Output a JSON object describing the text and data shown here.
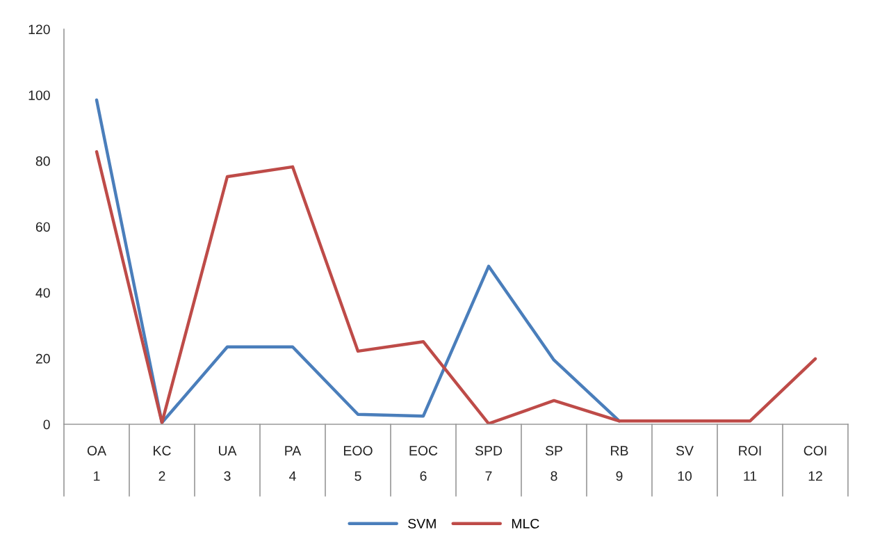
{
  "chart_data": {
    "type": "line",
    "categories": [
      "OA\n1",
      "KC\n2",
      "UA\n3",
      "PA\n4",
      "EOO\n5",
      "EOC\n6",
      "SPD\n7",
      "SP\n8",
      "RB\n9",
      "SV\n10",
      "ROI\n11",
      "COI\n12"
    ],
    "series": [
      {
        "name": "SVM",
        "color": "#4a7ebb",
        "values": [
          98.5,
          0.5,
          23.5,
          23.5,
          3,
          2.5,
          48,
          19.5,
          1,
          null,
          null,
          null
        ]
      },
      {
        "name": "MLC",
        "color": "#be4b48",
        "values": [
          82.8,
          0.5,
          75.2,
          78.2,
          22.2,
          25.1,
          0.2,
          7.2,
          1,
          1,
          1,
          19.9
        ]
      }
    ],
    "ylim": [
      0,
      120
    ],
    "yticks": [
      0,
      20,
      40,
      60,
      80,
      100,
      120
    ],
    "grid": false,
    "legend": "bottom",
    "marker": "none",
    "line_style": "solid"
  }
}
